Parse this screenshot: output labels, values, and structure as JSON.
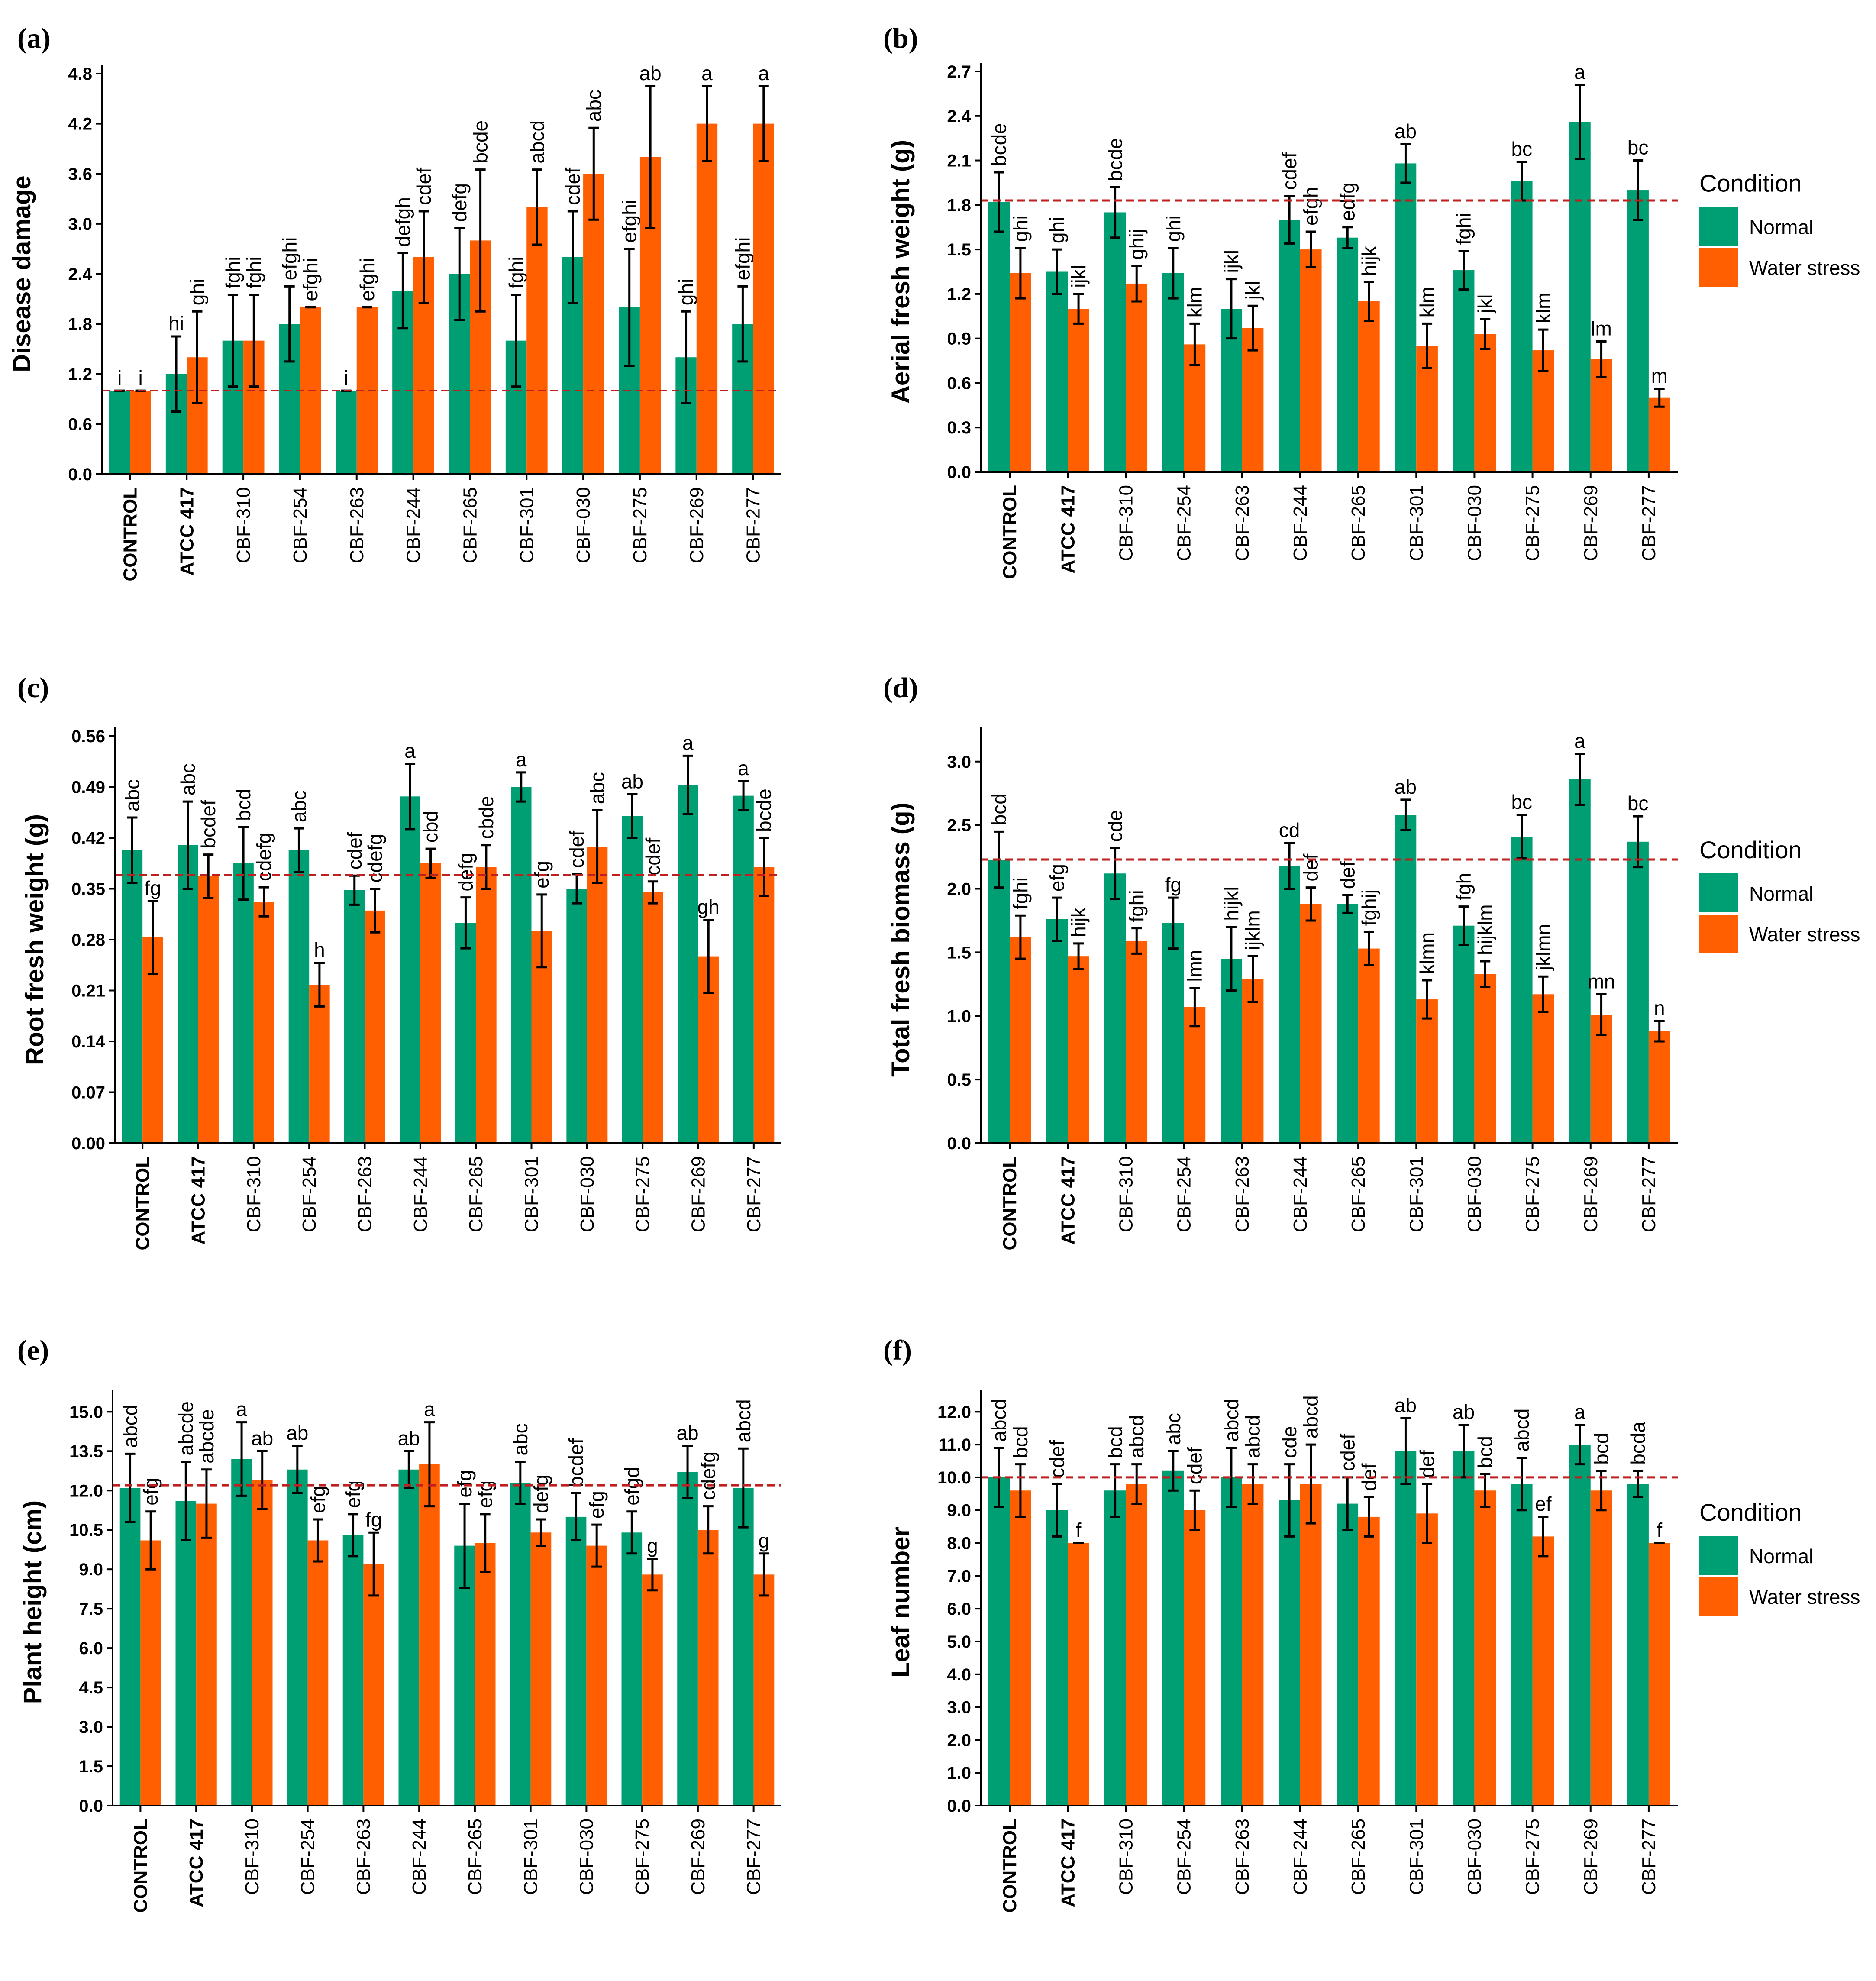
{
  "colors": {
    "normal": "#009E73",
    "water_stress": "#FF5F00",
    "threshold": "#C01F1F",
    "axis": "#000000",
    "error": "#000000"
  },
  "legend": {
    "title": "Condition",
    "normal": "Normal",
    "water_stress": "Water stress"
  },
  "chart_data": [
    {
      "panel": "(a)",
      "type": "bar",
      "ylabel": "Disease damage",
      "ylim": [
        0,
        4.8
      ],
      "yticks": [
        "0.0",
        "0.6",
        "1.2",
        "1.8",
        "2.4",
        "3.0",
        "3.6",
        "4.2",
        "4.8"
      ],
      "categories": [
        "CONTROL",
        "ATCC 417",
        "CBF-310",
        "CBF-254",
        "CBF-263",
        "CBF-244",
        "CBF-265",
        "CBF-301",
        "CBF-030",
        "CBF-275",
        "CBF-269",
        "CBF-277"
      ],
      "reference_line": 1.0,
      "legend": false,
      "series": [
        {
          "name": "Normal",
          "values": [
            1.0,
            1.2,
            1.6,
            1.8,
            1.0,
            2.2,
            2.4,
            1.6,
            2.6,
            2.0,
            1.4,
            1.8
          ],
          "errors": [
            0,
            0.45,
            0.55,
            0.45,
            0,
            0.45,
            0.55,
            0.55,
            0.55,
            0.7,
            0.55,
            0.45
          ],
          "letters": [
            "i",
            "hi",
            "fghi",
            "efghi",
            "i",
            "defgh",
            "defg",
            "fghi",
            "cdef",
            "efghi",
            "ghi",
            "efghi"
          ]
        },
        {
          "name": "Water stress",
          "values": [
            1.0,
            1.4,
            1.6,
            2.0,
            2.0,
            2.6,
            2.8,
            3.2,
            3.6,
            3.8,
            4.2,
            4.2
          ],
          "errors": [
            0,
            0.55,
            0.55,
            0,
            0,
            0.55,
            0.85,
            0.45,
            0.55,
            0.85,
            0.45,
            0.45
          ],
          "letters": [
            "i",
            "ghi",
            "fghi",
            "efghi",
            "efghi",
            "cdef",
            "bcde",
            "abcd",
            "abc",
            "ab",
            "a",
            "a"
          ]
        }
      ]
    },
    {
      "panel": "(b)",
      "type": "bar",
      "ylabel": "Aerial fresh weight (g)",
      "ylim": [
        0,
        2.7
      ],
      "yticks": [
        "0.0",
        "0.3",
        "0.6",
        "0.9",
        "1.2",
        "1.5",
        "1.8",
        "2.1",
        "2.4",
        "2.7"
      ],
      "categories": [
        "CONTROL",
        "ATCC 417",
        "CBF-310",
        "CBF-254",
        "CBF-263",
        "CBF-244",
        "CBF-265",
        "CBF-301",
        "CBF-030",
        "CBF-275",
        "CBF-269",
        "CBF-277"
      ],
      "reference_line": 1.83,
      "legend": true,
      "series": [
        {
          "name": "Normal",
          "values": [
            1.82,
            1.35,
            1.75,
            1.34,
            1.1,
            1.7,
            1.58,
            2.08,
            1.36,
            1.96,
            2.36,
            1.9
          ],
          "errors": [
            0.2,
            0.15,
            0.17,
            0.17,
            0.2,
            0.16,
            0.07,
            0.13,
            0.13,
            0.13,
            0.25,
            0.2
          ],
          "letters": [
            "bcde",
            "ghi",
            "bcde",
            "ghi",
            "ijkl",
            "cdef",
            "edfg",
            "ab",
            "fghi",
            "bc",
            "a",
            "bc"
          ]
        },
        {
          "name": "Water stress",
          "values": [
            1.34,
            1.1,
            1.27,
            0.86,
            0.97,
            1.5,
            1.15,
            0.85,
            0.93,
            0.82,
            0.76,
            0.5
          ],
          "errors": [
            0.17,
            0.1,
            0.12,
            0.14,
            0.15,
            0.12,
            0.13,
            0.15,
            0.1,
            0.14,
            0.12,
            0.06
          ],
          "letters": [
            "ghi",
            "ijkl",
            "ghij",
            "klm",
            "jkl",
            "efgh",
            "hijk",
            "klm",
            "jkl",
            "klm",
            "lm",
            "m"
          ]
        }
      ]
    },
    {
      "panel": "(c)",
      "type": "bar",
      "ylabel": "Root fresh weight (g)",
      "ylim": [
        0,
        0.56
      ],
      "yticks": [
        "0.00",
        "0.07",
        "0.14",
        "0.21",
        "0.28",
        "0.35",
        "0.42",
        "0.49",
        "0.56"
      ],
      "categories": [
        "CONTROL",
        "ATCC 417",
        "CBF-310",
        "CBF-254",
        "CBF-263",
        "CBF-244",
        "CBF-265",
        "CBF-301",
        "CBF-030",
        "CBF-275",
        "CBF-269",
        "CBF-277"
      ],
      "reference_line": 0.369,
      "legend": false,
      "series": [
        {
          "name": "Normal",
          "values": [
            0.403,
            0.41,
            0.385,
            0.403,
            0.348,
            0.477,
            0.303,
            0.49,
            0.35,
            0.45,
            0.493,
            0.478
          ],
          "errors": [
            0.045,
            0.06,
            0.05,
            0.03,
            0.02,
            0.045,
            0.035,
            0.02,
            0.02,
            0.03,
            0.04,
            0.02
          ],
          "letters": [
            "abc",
            "abc",
            "bcd",
            "abc",
            "cdef",
            "a",
            "defg",
            "a",
            "cdef",
            "ab",
            "a",
            "a"
          ]
        },
        {
          "name": "Water stress",
          "values": [
            0.283,
            0.367,
            0.332,
            0.218,
            0.32,
            0.385,
            0.38,
            0.292,
            0.408,
            0.345,
            0.257,
            0.38
          ],
          "errors": [
            0.05,
            0.03,
            0.02,
            0.03,
            0.03,
            0.02,
            0.03,
            0.05,
            0.05,
            0.015,
            0.05,
            0.04
          ],
          "letters": [
            "fg",
            "bcdef",
            "cdefg",
            "h",
            "cdefg",
            "cbd",
            "cbde",
            "efg",
            "abc",
            "cdef",
            "gh",
            "bcde"
          ]
        }
      ]
    },
    {
      "panel": "(d)",
      "type": "bar",
      "ylabel": "Total fresh biomass (g)",
      "ylim": [
        0,
        3.2
      ],
      "yticks": [
        "0.0",
        "0.5",
        "1.0",
        "1.5",
        "2.0",
        "2.5",
        "3.0"
      ],
      "categories": [
        "CONTROL",
        "ATCC 417",
        "CBF-310",
        "CBF-254",
        "CBF-263",
        "CBF-244",
        "CBF-265",
        "CBF-301",
        "CBF-030",
        "CBF-275",
        "CBF-269",
        "CBF-277"
      ],
      "reference_line": 2.23,
      "legend": true,
      "series": [
        {
          "name": "Normal",
          "values": [
            2.23,
            1.76,
            2.12,
            1.73,
            1.45,
            2.18,
            1.88,
            2.58,
            1.71,
            2.41,
            2.86,
            2.37
          ],
          "errors": [
            0.22,
            0.17,
            0.2,
            0.2,
            0.25,
            0.18,
            0.07,
            0.12,
            0.15,
            0.17,
            0.2,
            0.2
          ],
          "letters": [
            "bcd",
            "efg",
            "cde",
            "fg",
            "hijkl",
            "cd",
            "def",
            "ab",
            "fgh",
            "bc",
            "a",
            "bc"
          ]
        },
        {
          "name": "Water stress",
          "values": [
            1.62,
            1.47,
            1.59,
            1.07,
            1.29,
            1.88,
            1.53,
            1.13,
            1.33,
            1.17,
            1.01,
            0.88
          ],
          "errors": [
            0.17,
            0.1,
            0.1,
            0.15,
            0.18,
            0.13,
            0.13,
            0.15,
            0.1,
            0.14,
            0.16,
            0.08
          ],
          "letters": [
            "fghi",
            "hijk",
            "fghi",
            "lmn",
            "ijklm",
            "def",
            "fghij",
            "klmn",
            "hijklm",
            "jklmn",
            "mn",
            "n"
          ]
        }
      ]
    },
    {
      "panel": "(e)",
      "type": "bar",
      "ylabel": "Plant height (cm)",
      "ylim": [
        0,
        15.5
      ],
      "yticks": [
        "0.0",
        "1.5",
        "3.0",
        "4.5",
        "6.0",
        "7.5",
        "9.0",
        "10.5",
        "12.0",
        "13.5",
        "15.0"
      ],
      "categories": [
        "CONTROL",
        "ATCC 417",
        "CBF-310",
        "CBF-254",
        "CBF-263",
        "CBF-244",
        "CBF-265",
        "CBF-301",
        "CBF-030",
        "CBF-275",
        "CBF-269",
        "CBF-277"
      ],
      "reference_line": 12.2,
      "legend": false,
      "series": [
        {
          "name": "Normal",
          "values": [
            12.1,
            11.6,
            13.2,
            12.8,
            10.3,
            12.8,
            9.9,
            12.3,
            11.0,
            10.4,
            12.7,
            12.1
          ],
          "errors": [
            1.3,
            1.5,
            1.4,
            0.9,
            0.8,
            0.7,
            1.6,
            0.8,
            0.9,
            0.8,
            1.0,
            1.5
          ],
          "letters": [
            "abcd",
            "abcde",
            "a",
            "ab",
            "efg",
            "ab",
            "efg",
            "abc",
            "bcdef",
            "efgd",
            "ab",
            "abcd"
          ]
        },
        {
          "name": "Water stress",
          "values": [
            10.1,
            11.5,
            12.4,
            10.1,
            9.2,
            13.0,
            10.0,
            10.4,
            9.9,
            8.8,
            10.5,
            8.8
          ],
          "errors": [
            1.1,
            1.3,
            1.1,
            0.8,
            1.2,
            1.6,
            1.1,
            0.5,
            0.8,
            0.6,
            0.9,
            0.8
          ],
          "letters": [
            "efg",
            "abcde",
            "ab",
            "efg",
            "fg",
            "a",
            "efg",
            "defg",
            "efg",
            "g",
            "cdefg",
            "g"
          ]
        }
      ]
    },
    {
      "panel": "(f)",
      "type": "bar",
      "ylabel": "Leaf number",
      "ylim": [
        0,
        12.4
      ],
      "yticks": [
        "0.0",
        "1.0",
        "2.0",
        "3.0",
        "4.0",
        "5.0",
        "6.0",
        "7.0",
        "8.0",
        "9.0",
        "10.0",
        "11.0",
        "12.0"
      ],
      "categories": [
        "CONTROL",
        "ATCC 417",
        "CBF-310",
        "CBF-254",
        "CBF-263",
        "CBF-244",
        "CBF-265",
        "CBF-301",
        "CBF-030",
        "CBF-275",
        "CBF-269",
        "CBF-277"
      ],
      "reference_line": 10.0,
      "legend": true,
      "series": [
        {
          "name": "Normal",
          "values": [
            10.0,
            9.0,
            9.6,
            10.2,
            10.0,
            9.3,
            9.2,
            10.8,
            10.8,
            9.8,
            11.0,
            9.8
          ],
          "errors": [
            0.9,
            0.8,
            0.8,
            0.6,
            0.9,
            1.1,
            0.8,
            1.0,
            0.8,
            0.8,
            0.6,
            0.4
          ],
          "letters": [
            "abcd",
            "cdef",
            "bcd",
            "abc",
            "abcd",
            "cde",
            "cdef",
            "ab",
            "ab",
            "abcd",
            "a",
            "bcda"
          ]
        },
        {
          "name": "Water stress",
          "values": [
            9.6,
            8.0,
            9.8,
            9.0,
            9.8,
            9.8,
            8.8,
            8.9,
            9.6,
            8.2,
            9.6,
            8.0
          ],
          "errors": [
            0.8,
            0,
            0.6,
            0.6,
            0.6,
            1.2,
            0.6,
            0.9,
            0.5,
            0.6,
            0.6,
            0
          ],
          "letters": [
            "bcd",
            "f",
            "abcd",
            "cdef",
            "abcd",
            "abcd",
            "def",
            "def",
            "bcd",
            "ef",
            "bcd",
            "f"
          ]
        }
      ]
    }
  ]
}
